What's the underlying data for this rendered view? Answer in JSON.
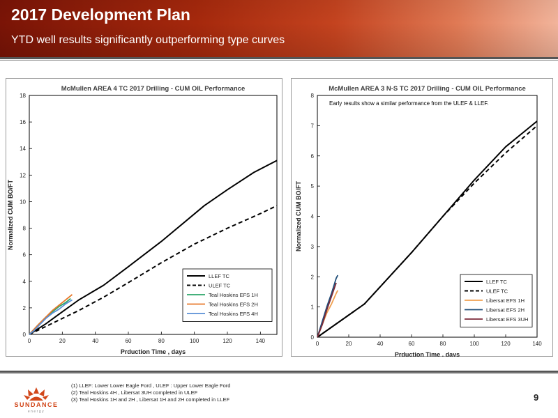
{
  "slide": {
    "title": "2017 Development Plan",
    "subtitle": "YTD well results significantly outperforming type curves",
    "page_number": "9"
  },
  "footnotes": [
    "(1) LLEF: Lower Lower Eagle Ford , ULEF : Upper Lower Eagle Ford",
    "(2) Teal Hoskins 4H , Libersat 3UH completed in ULEF",
    "(3) Teal Hoskins 1H and 2H , Libersat 1H and 2H completed in LLEF"
  ],
  "logo": {
    "text_main": "SUNDANCE",
    "text_sub": "energy",
    "colors": {
      "main": "#d2471a",
      "sub": "#8a8a8a"
    }
  },
  "colors": {
    "accent": "#b83418"
  },
  "chart_data": [
    {
      "type": "line",
      "title": "McMullen AREA 4 TC 2017 Drilling - CUM OIL Performance",
      "xlabel": "Prduction Time , days",
      "ylabel": "Normalized CUM BO/FT",
      "xlim": [
        0,
        150
      ],
      "ylim": [
        0,
        18
      ],
      "xticks": [
        0,
        20,
        40,
        60,
        80,
        100,
        120,
        140
      ],
      "yticks": [
        0,
        2,
        4,
        6,
        8,
        10,
        12,
        14,
        16,
        18
      ],
      "grid": false,
      "legend_position": "bottom-right",
      "annotation": "",
      "series": [
        {
          "name": "LLEF TC",
          "color": "#000000",
          "dash": "solid",
          "x": [
            0,
            10,
            20,
            30,
            45,
            60,
            80,
            106,
            120,
            136,
            150
          ],
          "y": [
            0,
            0.8,
            1.7,
            2.6,
            3.7,
            5.1,
            7.0,
            9.7,
            10.9,
            12.2,
            13.1
          ]
        },
        {
          "name": "ULEF TC",
          "color": "#000000",
          "dash": "dashed",
          "x": [
            0,
            10,
            20,
            30,
            45,
            60,
            80,
            100,
            120,
            140,
            150
          ],
          "y": [
            0,
            0.6,
            1.2,
            1.8,
            2.8,
            3.9,
            5.4,
            6.8,
            8.0,
            9.1,
            9.7
          ]
        },
        {
          "name": "Teal Hoskins EFS 1H",
          "color": "#2ca66a",
          "dash": "solid",
          "x": [
            0,
            3,
            6,
            10,
            14,
            18,
            22,
            25
          ],
          "y": [
            0,
            0.4,
            0.8,
            1.3,
            1.7,
            2.1,
            2.4,
            2.7
          ]
        },
        {
          "name": "Teal Hoskins EFS 2H",
          "color": "#e8782a",
          "dash": "solid",
          "x": [
            0,
            3,
            6,
            10,
            14,
            18,
            22,
            26
          ],
          "y": [
            0,
            0.4,
            0.8,
            1.3,
            1.8,
            2.2,
            2.6,
            3.0
          ]
        },
        {
          "name": "Teal Hoskins EFS 4H",
          "color": "#5a8fd6",
          "dash": "solid",
          "x": [
            0,
            3,
            6,
            10,
            14,
            18,
            22,
            26
          ],
          "y": [
            0,
            0.3,
            0.7,
            1.2,
            1.6,
            1.9,
            2.3,
            2.6
          ]
        }
      ]
    },
    {
      "type": "line",
      "title": "McMullen AREA 3 N-S TC 2017 Drilling - CUM OIL Performance",
      "xlabel": "Prduction Time , days",
      "ylabel": "Normalized CUM BO/FT",
      "xlim": [
        0,
        140
      ],
      "ylim": [
        0,
        8
      ],
      "xticks": [
        0,
        20,
        40,
        60,
        80,
        100,
        120,
        140
      ],
      "yticks": [
        0,
        1,
        2,
        3,
        4,
        5,
        6,
        7,
        8
      ],
      "grid": false,
      "legend_position": "bottom-right",
      "annotation": "Early results show a similar performance from the ULEF & LLEF.",
      "series": [
        {
          "name": "LLEF TC",
          "color": "#000000",
          "dash": "solid",
          "x": [
            0,
            30,
            60,
            80,
            100,
            120,
            140
          ],
          "y": [
            0,
            1.1,
            2.8,
            4.0,
            5.2,
            6.3,
            7.15
          ]
        },
        {
          "name": "ULEF TC",
          "color": "#000000",
          "dash": "dashed",
          "x": [
            0,
            30,
            60,
            80,
            100,
            120,
            140
          ],
          "y": [
            0,
            1.1,
            2.8,
            4.0,
            5.1,
            6.1,
            7.0
          ]
        },
        {
          "name": "Libersat EFS 1H",
          "color": "#f0a050",
          "dash": "solid",
          "x": [
            0,
            3,
            6,
            9,
            12,
            13
          ],
          "y": [
            0,
            0.4,
            0.8,
            1.1,
            1.45,
            1.55
          ]
        },
        {
          "name": "Libersat EFS 2H",
          "color": "#1f4e79",
          "dash": "solid",
          "x": [
            0,
            3,
            6,
            9,
            12,
            13
          ],
          "y": [
            0,
            0.5,
            1.0,
            1.45,
            1.95,
            2.05
          ]
        },
        {
          "name": "Libersat EFS 3UH",
          "color": "#7b2a3a",
          "dash": "solid",
          "x": [
            0,
            3,
            6,
            9,
            12
          ],
          "y": [
            0,
            0.4,
            0.9,
            1.35,
            1.8
          ]
        }
      ]
    }
  ]
}
